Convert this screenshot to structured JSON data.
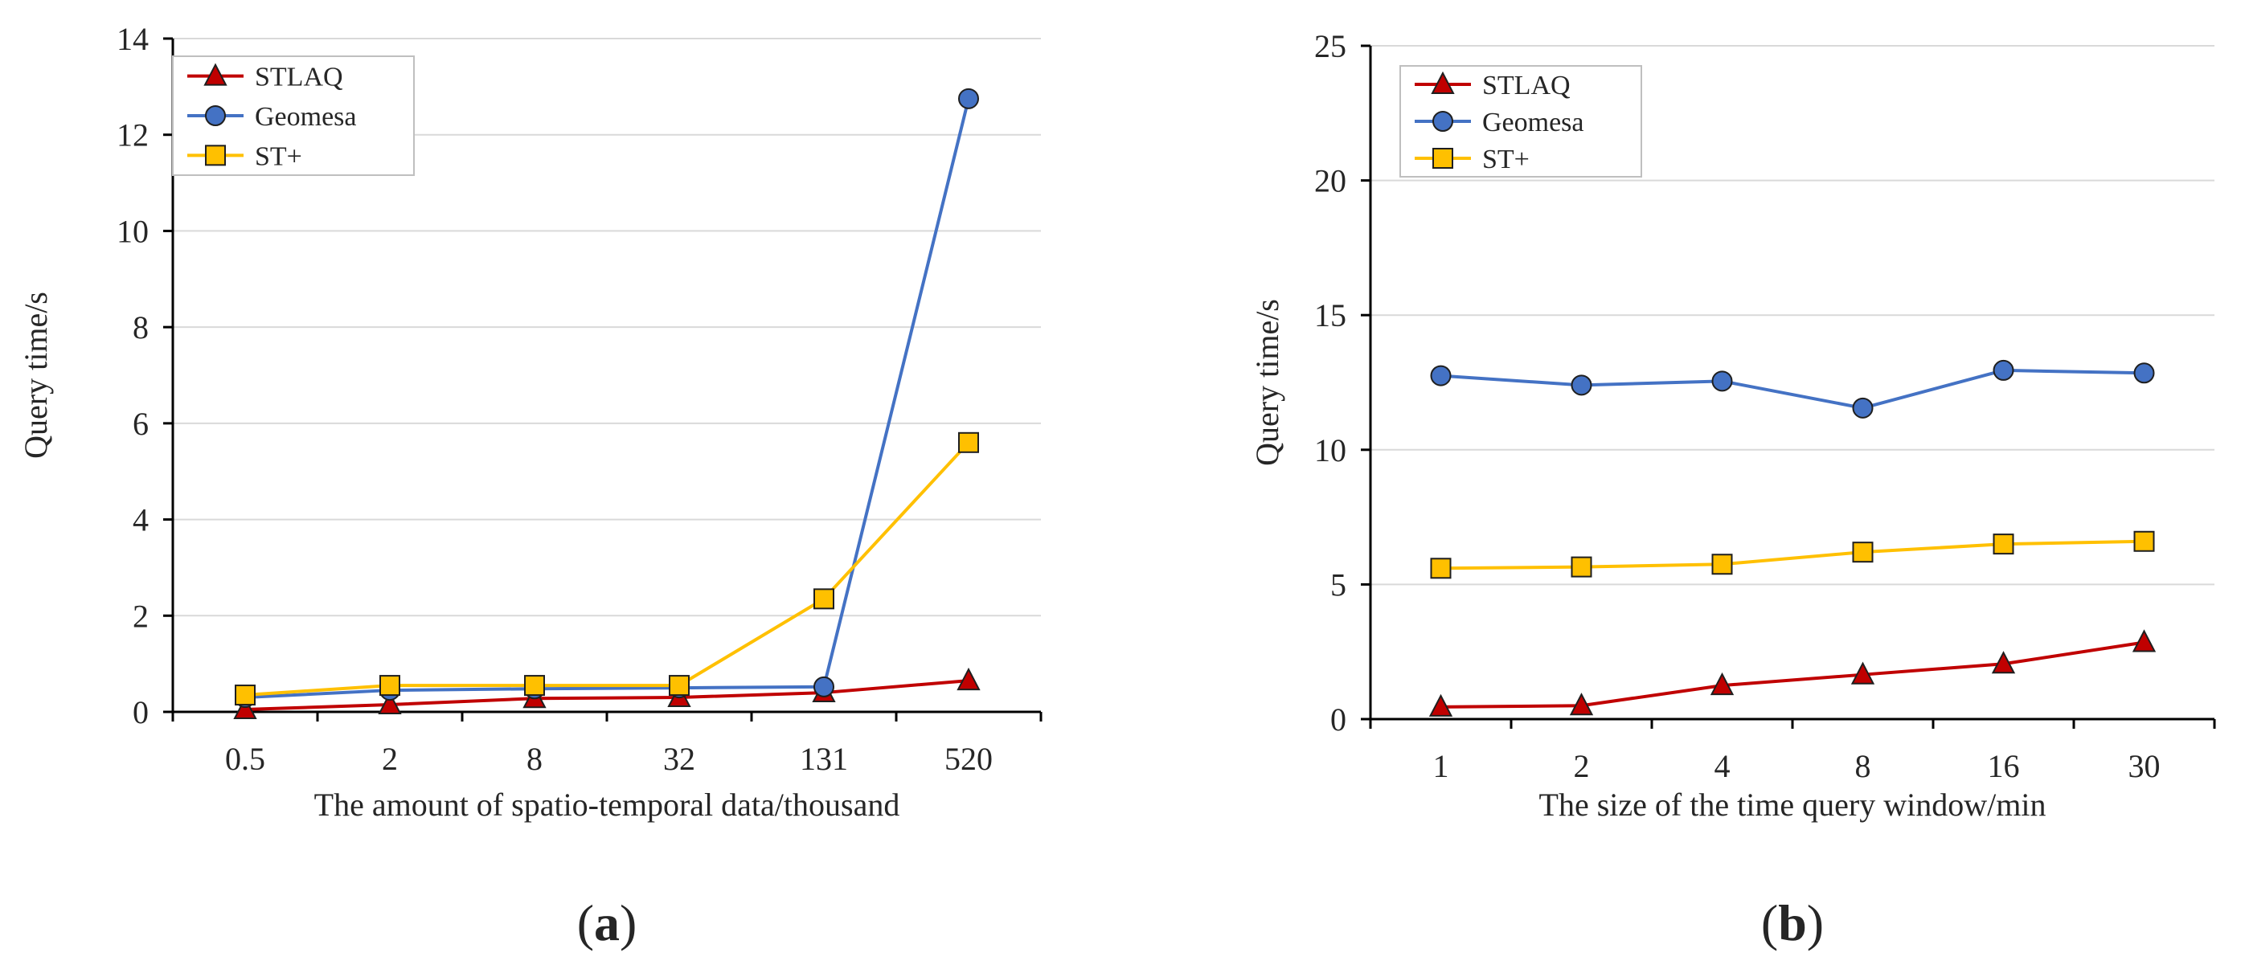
{
  "colors": {
    "STLAQ": "#C00000",
    "Geomesa": "#4472C4",
    "ST+": "#FFC000",
    "grid": "#D9D9D9",
    "axis": "#000000"
  },
  "chart_data": [
    {
      "type": "line",
      "panel": "a",
      "panel_label": {
        "open": "(",
        "letter": "a",
        "close": ")"
      },
      "xlabel": "The amount of spatio-temporal data/thousand",
      "ylabel": "Query time/s",
      "categories": [
        "0.5",
        "2",
        "8",
        "32",
        "131",
        "520"
      ],
      "ylim": [
        0,
        14
      ],
      "yticks": [
        0,
        2,
        4,
        6,
        8,
        10,
        12,
        14
      ],
      "grid": true,
      "legend_position": "top-left",
      "series": [
        {
          "name": "STLAQ",
          "marker": "triangle",
          "values": [
            0.05,
            0.15,
            0.28,
            0.3,
            0.4,
            0.65
          ]
        },
        {
          "name": "Geomesa",
          "marker": "circle",
          "values": [
            0.3,
            0.45,
            0.48,
            0.5,
            0.52,
            12.75
          ]
        },
        {
          "name": "ST+",
          "marker": "square",
          "values": [
            0.35,
            0.55,
            0.55,
            0.55,
            2.35,
            5.6
          ]
        }
      ]
    },
    {
      "type": "line",
      "panel": "b",
      "panel_label": {
        "open": "(",
        "letter": "b",
        "close": ")"
      },
      "xlabel": "The size of the time query window/min",
      "ylabel": "Query time/s",
      "categories": [
        "1",
        "2",
        "4",
        "8",
        "16",
        "30"
      ],
      "ylim": [
        0,
        25
      ],
      "yticks": [
        0,
        5,
        10,
        15,
        20,
        25
      ],
      "grid": true,
      "legend_position": "top-left",
      "series": [
        {
          "name": "STLAQ",
          "marker": "triangle",
          "values": [
            0.45,
            0.5,
            1.25,
            1.65,
            2.05,
            2.85
          ]
        },
        {
          "name": "Geomesa",
          "marker": "circle",
          "values": [
            12.75,
            12.4,
            12.55,
            11.55,
            12.95,
            12.85
          ]
        },
        {
          "name": "ST+",
          "marker": "square",
          "values": [
            5.6,
            5.65,
            5.75,
            6.2,
            6.5,
            6.6
          ]
        }
      ]
    }
  ]
}
